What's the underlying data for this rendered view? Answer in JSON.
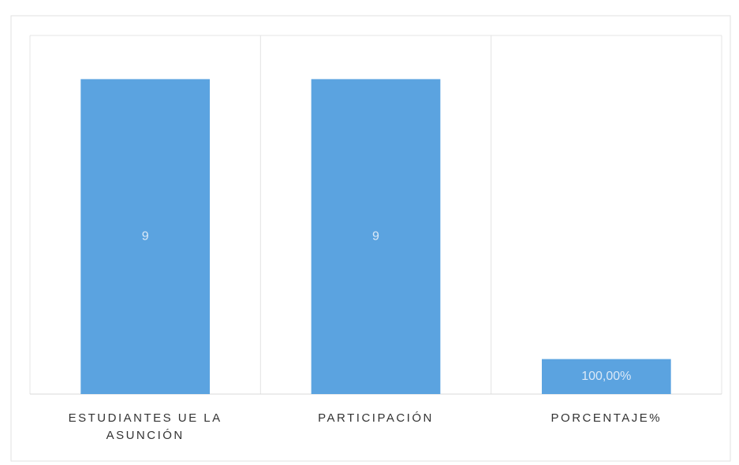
{
  "chart_data": {
    "type": "bar",
    "categories": [
      "ESTUDIANTES UE LA ASUNCIÓN",
      "PARTICIPACIÓN",
      "PORCENTAJE%"
    ],
    "values": [
      9,
      9,
      1
    ],
    "value_labels": [
      "9",
      "9",
      "100,00%"
    ],
    "color": "#5ba3e0",
    "ylim": [
      0,
      10
    ],
    "grid": true
  }
}
